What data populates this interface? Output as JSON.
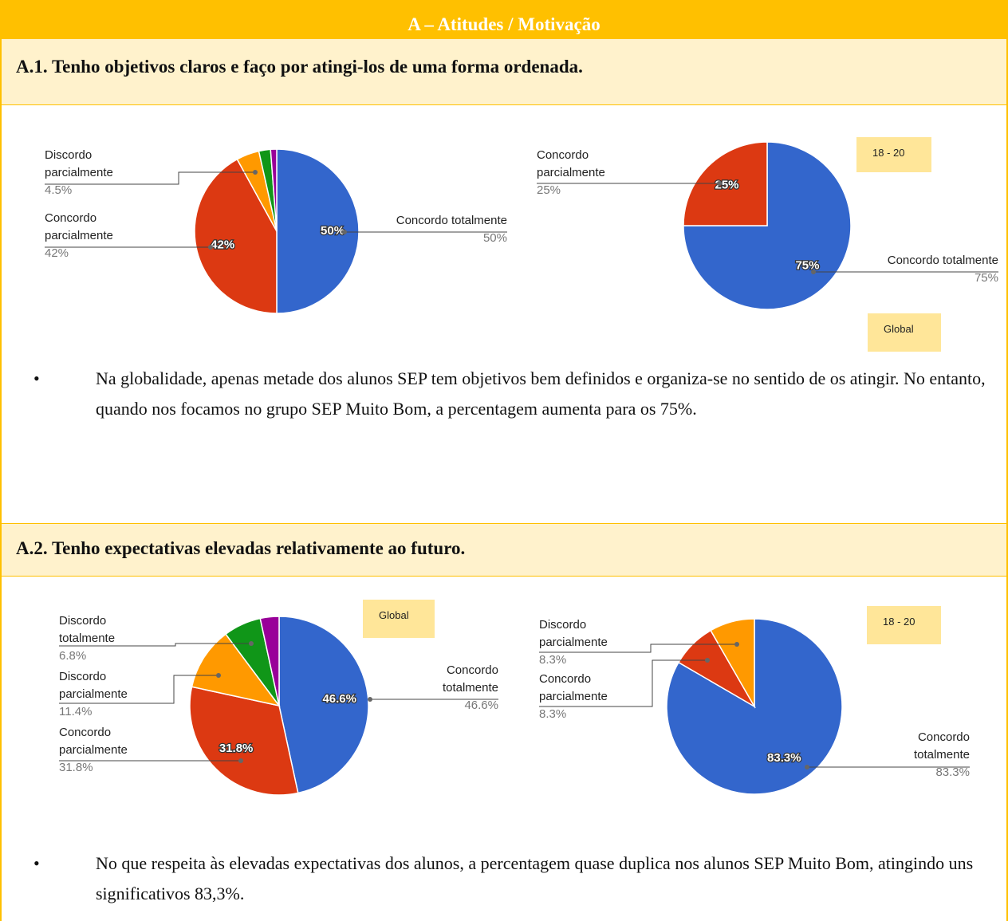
{
  "header": "A – Atitudes / Motivação",
  "sections": [
    {
      "title": "A.1. Tenho objetivos claros e faço por atingi-los de uma forma ordenada.",
      "bullet": "Na globalidade, apenas metade dos alunos SEP tem objetivos bem definidos e organiza-se no sentido de os atingir. No entanto, quando nos focamos no grupo SEP Muito Bom, a percentagem aumenta para os 75%."
    },
    {
      "title": "A.2. Tenho expectativas elevadas relativamente ao futuro.",
      "bullet": "No que respeita às elevadas expectativas dos alunos, a percentagem quase duplica nos alunos SEP Muito Bom, atingindo uns significativos 83,3%."
    }
  ],
  "chart_data": [
    {
      "type": "pie",
      "tag": "Global",
      "categories": [
        "Concordo totalmente",
        "Concordo parcialmente",
        "Discordo parcialmente",
        null,
        null
      ],
      "values": [
        50,
        42,
        4.5,
        2.3,
        1.2
      ],
      "value_labels": [
        "50%",
        "42%",
        "4.5%",
        null,
        null
      ],
      "colors": [
        "#3366cc",
        "#dc3912",
        "#ff9900",
        "#109618",
        "#990099"
      ]
    },
    {
      "type": "pie",
      "tag": "18 - 20",
      "categories": [
        "Concordo totalmente",
        "Concordo parcialmente"
      ],
      "values": [
        75,
        25
      ],
      "value_labels": [
        "75%",
        "25%"
      ],
      "colors": [
        "#3366cc",
        "#dc3912"
      ]
    },
    {
      "type": "pie",
      "tag": "Global",
      "categories": [
        "Concordo totalmente",
        "Concordo parcialmente",
        "Discordo parcialmente",
        "Discordo totalmente",
        null
      ],
      "values": [
        46.6,
        31.8,
        11.4,
        6.8,
        3.4
      ],
      "value_labels": [
        "46.6%",
        "31.8%",
        "11.4%",
        "6.8%",
        null
      ],
      "colors": [
        "#3366cc",
        "#dc3912",
        "#ff9900",
        "#109618",
        "#990099"
      ]
    },
    {
      "type": "pie",
      "tag": "18 - 20",
      "categories": [
        "Concordo totalmente",
        "Concordo parcialmente",
        "Discordo parcialmente"
      ],
      "values": [
        83.3,
        8.3,
        8.3
      ],
      "value_labels": [
        "83.3%",
        "8.3%",
        "8.3%"
      ],
      "colors": [
        "#3366cc",
        "#dc3912",
        "#ff9900"
      ]
    }
  ]
}
